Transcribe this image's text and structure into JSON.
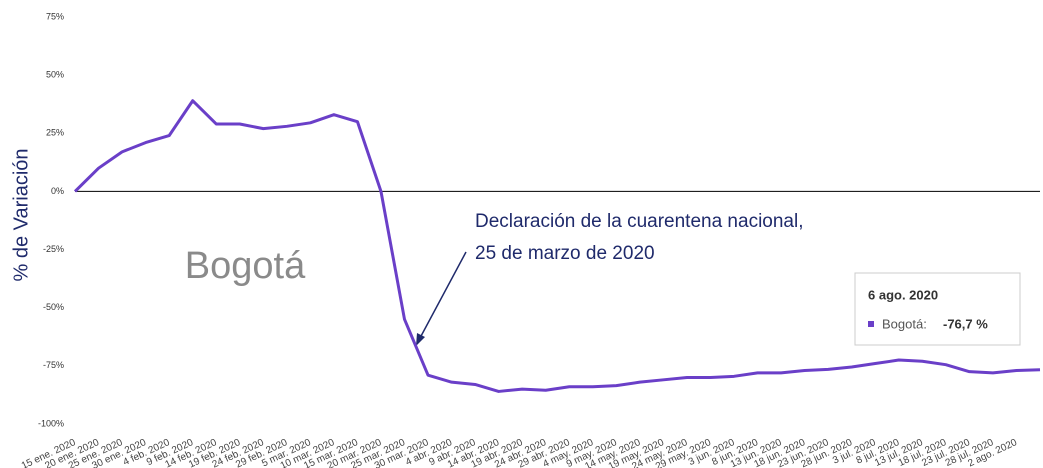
{
  "chart_data": {
    "type": "line",
    "ylabel": "% de Variación",
    "annotation": "Declaración de la cuarentena nacional,",
    "annotation_2": "25 de marzo de 2020",
    "categories": [
      "15 ene. 2020",
      "20 ene. 2020",
      "25 ene. 2020",
      "30 ene. 2020",
      "4 feb. 2020",
      "9 feb. 2020",
      "14 feb. 2020",
      "19 feb. 2020",
      "24 feb. 2020",
      "29 feb. 2020",
      "5 mar. 2020",
      "10 mar. 2020",
      "15 mar. 2020",
      "20 mar. 2020",
      "25 mar. 2020",
      "30 mar. 2020",
      "4 abr. 2020",
      "9 abr. 2020",
      "14 abr. 2020",
      "19 abr. 2020",
      "24 abr. 2020",
      "29 abr. 2020",
      "4 may. 2020",
      "9 may. 2020",
      "14 may. 2020",
      "19 may. 2020",
      "24 may. 2020",
      "29 may. 2020",
      "3 jun. 2020",
      "8 jun. 2020",
      "13 jun. 2020",
      "18 jun. 2020",
      "23 jun. 2020",
      "28 jun. 2020",
      "3 jul. 2020",
      "8 jul. 2020",
      "13 jul. 2020",
      "18 jul. 2020",
      "23 jul. 2020",
      "28 jul. 2020",
      "2 ago. 2020",
      null
    ],
    "series": [
      {
        "name": "Bogotá",
        "color": "#6a3fc8",
        "values": [
          0,
          10,
          17,
          21,
          24,
          39,
          29,
          29,
          27,
          28,
          29.5,
          33,
          30,
          0,
          -55,
          -79,
          -82,
          -83,
          -86,
          -85,
          -85.5,
          -84,
          -84,
          -83.5,
          -82,
          -81,
          -80,
          -80,
          -79.5,
          -78,
          -78,
          -77,
          -76.5,
          -75.5,
          -74,
          -72.5,
          -73,
          -74.5,
          -77.5,
          -78,
          -77,
          -76.7
        ]
      }
    ],
    "ylim": [
      -100,
      75
    ],
    "yticks": [
      {
        "value": -100,
        "label": "-100%"
      },
      {
        "value": -75,
        "label": "-75%"
      },
      {
        "value": -50,
        "label": "-50%"
      },
      {
        "value": -25,
        "label": "-25%"
      },
      {
        "value": 0,
        "label": "0%"
      },
      {
        "value": 25,
        "label": "25%"
      },
      {
        "value": 50,
        "label": "50%"
      },
      {
        "value": 75,
        "label": "75%"
      }
    ],
    "tooltip": {
      "date": "6 ago. 2020",
      "label": "Bogotá:",
      "value": "-76,7 %"
    }
  }
}
